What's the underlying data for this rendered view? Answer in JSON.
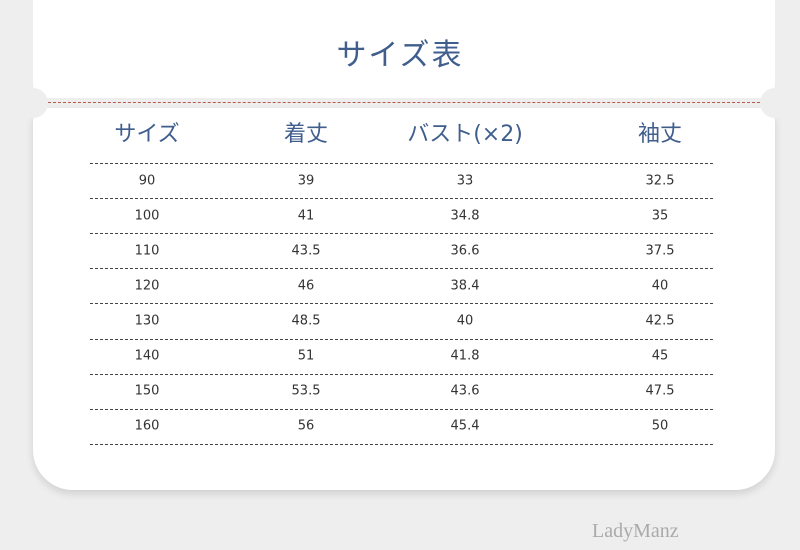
{
  "title": "サイズ表",
  "table": {
    "header": [
      "サイズ",
      "着丈",
      "バスト(×2)",
      "袖丈"
    ],
    "rows": [
      [
        "90",
        "39",
        "33",
        "32.5"
      ],
      [
        "100",
        "41",
        "34.8",
        "35"
      ],
      [
        "110",
        "43.5",
        "36.6",
        "37.5"
      ],
      [
        "120",
        "46",
        "38.4",
        "40"
      ],
      [
        "130",
        "48.5",
        "40",
        "42.5"
      ],
      [
        "140",
        "51",
        "41.8",
        "45"
      ],
      [
        "150",
        "53.5",
        "43.6",
        "47.5"
      ],
      [
        "160",
        "56",
        "45.4",
        "50"
      ]
    ]
  },
  "watermark": "LadyManz"
}
